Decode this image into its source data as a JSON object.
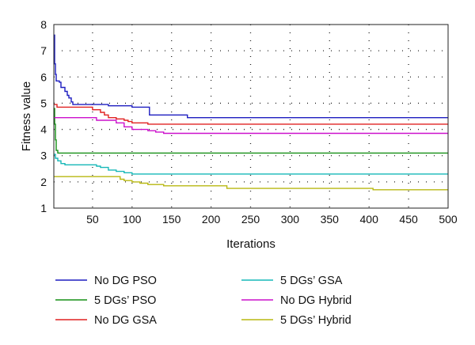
{
  "chart_data": {
    "type": "line",
    "xlabel": "Iterations",
    "ylabel": "Fitness value",
    "xlim": [
      1,
      500
    ],
    "ylim": [
      1,
      8
    ],
    "xticks": [
      50,
      100,
      150,
      200,
      250,
      300,
      350,
      400,
      450,
      500
    ],
    "yticks": [
      1,
      2,
      3,
      4,
      5,
      6,
      7,
      8
    ],
    "grid": true,
    "legend_placement": "below",
    "series": [
      {
        "name": "No DG PSO",
        "color": "#1d1dc0",
        "x": [
          1,
          2,
          3,
          4,
          8,
          10,
          13,
          15,
          18,
          20,
          23,
          25,
          60,
          70,
          100,
          120,
          122,
          165,
          170,
          500
        ],
        "y": [
          7.6,
          6.5,
          6.1,
          5.85,
          5.8,
          5.6,
          5.6,
          5.45,
          5.3,
          5.2,
          5.05,
          4.95,
          4.95,
          4.9,
          4.85,
          4.85,
          4.55,
          4.55,
          4.45,
          4.45
        ]
      },
      {
        "name": "5 DGs’ PSO",
        "color": "#159015",
        "x": [
          1,
          2,
          3,
          4,
          6,
          500
        ],
        "y": [
          4.8,
          4.2,
          3.6,
          3.2,
          3.1,
          3.1
        ]
      },
      {
        "name": "No DG GSA",
        "color": "#e02020",
        "x": [
          1,
          5,
          40,
          50,
          60,
          65,
          70,
          80,
          90,
          95,
          100,
          120,
          500
        ],
        "y": [
          4.95,
          4.85,
          4.85,
          4.75,
          4.65,
          4.55,
          4.45,
          4.4,
          4.35,
          4.3,
          4.25,
          4.2,
          4.2
        ]
      },
      {
        "name": "5 DGs’ GSA",
        "color": "#16b8b8",
        "x": [
          1,
          3,
          6,
          10,
          15,
          50,
          55,
          60,
          70,
          80,
          90,
          100,
          500
        ],
        "y": [
          3.05,
          2.9,
          2.8,
          2.7,
          2.65,
          2.65,
          2.6,
          2.55,
          2.45,
          2.4,
          2.35,
          2.3,
          2.3
        ]
      },
      {
        "name": "No DG Hybrid",
        "color": "#cc10cc",
        "x": [
          1,
          50,
          55,
          80,
          90,
          100,
          120,
          130,
          140,
          180,
          500
        ],
        "y": [
          4.45,
          4.45,
          4.35,
          4.25,
          4.1,
          4.0,
          3.95,
          3.9,
          3.85,
          3.85,
          3.85
        ],
        "note_unused": ""
      },
      {
        "name": "5 DGs’ Hybrid",
        "color": "#b8b810",
        "x": [
          1,
          75,
          85,
          90,
          100,
          110,
          120,
          140,
          200,
          220,
          400,
          405,
          500
        ],
        "y": [
          2.2,
          2.2,
          2.1,
          2.05,
          2.0,
          1.95,
          1.9,
          1.85,
          1.85,
          1.75,
          1.75,
          1.7,
          1.7
        ]
      }
    ]
  }
}
